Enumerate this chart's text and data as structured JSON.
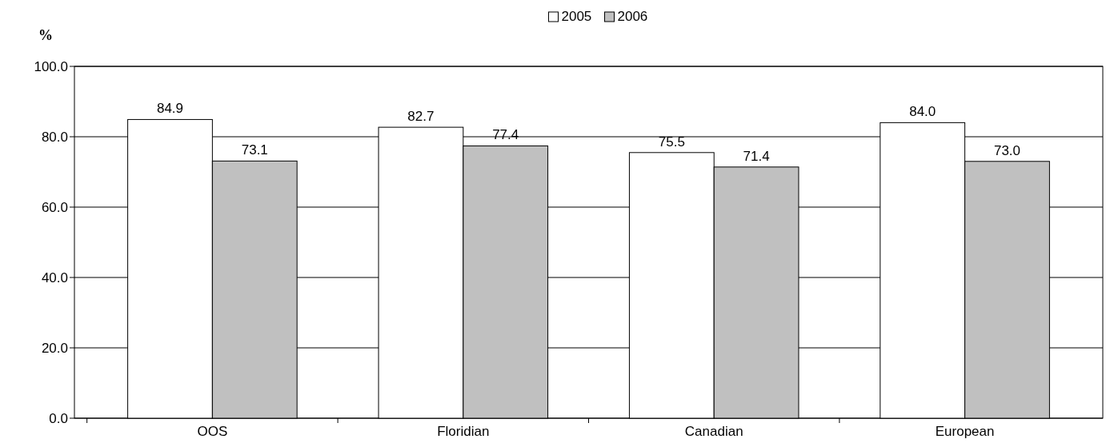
{
  "chart_data": {
    "type": "bar",
    "ylabel": "%",
    "categories": [
      "OOS",
      "Floridian",
      "Canadian",
      "European"
    ],
    "series": [
      {
        "name": "2005",
        "color": "#ffffff",
        "values": [
          84.9,
          82.7,
          75.5,
          84.0
        ],
        "value_labels": [
          "84.9",
          "82.7",
          "75.5",
          "84.0"
        ]
      },
      {
        "name": "2006",
        "color": "#c0c0c0",
        "values": [
          73.1,
          77.4,
          71.4,
          73.0
        ],
        "value_labels": [
          "73.1",
          "77.4",
          "71.4",
          "73.0"
        ]
      }
    ],
    "ylim": [
      0,
      100
    ],
    "yticks": [
      {
        "value": 0,
        "label": "0.0"
      },
      {
        "value": 20,
        "label": "20.0"
      },
      {
        "value": 40,
        "label": "40.0"
      },
      {
        "value": 60,
        "label": "60.0"
      },
      {
        "value": 80,
        "label": "80.0"
      },
      {
        "value": 100,
        "label": "100.0"
      }
    ],
    "grid": "y",
    "legend": "top"
  }
}
